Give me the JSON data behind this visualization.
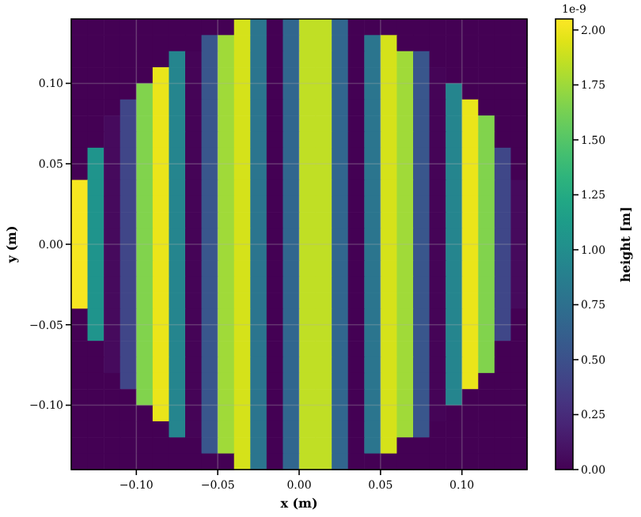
{
  "chart_data": {
    "type": "heatmap",
    "xlabel": "x (m)",
    "ylabel": "y (m)",
    "clabel": "height [m]",
    "annotations": [
      "1e-9"
    ],
    "xlim": [
      -0.14,
      0.14
    ],
    "ylim": [
      -0.14,
      0.14
    ],
    "xticks": [
      {
        "value": -0.1,
        "label": "−0.10"
      },
      {
        "value": -0.05,
        "label": "−0.05"
      },
      {
        "value": 0,
        "label": "0.00"
      },
      {
        "value": 0.05,
        "label": "0.05"
      },
      {
        "value": 0.1,
        "label": "0.10"
      }
    ],
    "yticks": [
      {
        "value": -0.1,
        "label": "−0.10"
      },
      {
        "value": -0.05,
        "label": "−0.05"
      },
      {
        "value": 0,
        "label": "0.00"
      },
      {
        "value": 0.05,
        "label": "0.05"
      },
      {
        "value": 0.1,
        "label": "0.10"
      }
    ],
    "grid": true,
    "clim": [
      0,
      2.05
    ],
    "cticks": [
      {
        "value": 0,
        "label": "0.00"
      },
      {
        "value": 0.25,
        "label": "0.25"
      },
      {
        "value": 0.5,
        "label": "0.50"
      },
      {
        "value": 0.75,
        "label": "0.75"
      },
      {
        "value": 1,
        "label": "1.00"
      },
      {
        "value": 1.25,
        "label": "1.25"
      },
      {
        "value": 1.5,
        "label": "1.50"
      },
      {
        "value": 1.75,
        "label": "1.75"
      },
      {
        "value": 2,
        "label": "2.00"
      }
    ],
    "cells": [
      [
        0,
        0,
        0,
        0,
        0,
        0,
        0,
        0,
        0,
        0,
        1.92,
        0.8,
        0.0,
        0.67,
        1.85,
        1.85,
        0.67,
        0.0,
        0,
        0,
        0,
        0,
        0,
        0,
        0,
        0,
        0,
        0
      ],
      [
        0,
        0,
        0,
        0,
        0,
        0,
        0,
        0,
        0.55,
        1.76,
        1.92,
        0.8,
        0.0,
        0.67,
        1.85,
        1.85,
        0.67,
        0.0,
        0.8,
        1.92,
        0,
        0,
        0,
        0,
        0,
        0,
        0,
        0
      ],
      [
        0,
        0,
        0,
        0,
        0,
        0,
        0.93,
        0.02,
        0.55,
        1.76,
        1.92,
        0.8,
        0.0,
        0.67,
        1.85,
        1.85,
        0.67,
        0.0,
        0.8,
        1.92,
        1.76,
        0.55,
        0,
        0,
        0,
        0,
        0,
        0
      ],
      [
        0,
        0,
        0,
        0,
        0,
        1.98,
        0.93,
        0.02,
        0.55,
        1.76,
        1.92,
        0.8,
        0.0,
        0.67,
        1.85,
        1.85,
        0.67,
        0.0,
        0.8,
        1.92,
        1.76,
        0.55,
        0.02,
        0,
        0,
        0,
        0,
        0
      ],
      [
        0,
        0,
        0,
        0,
        1.66,
        1.98,
        0.93,
        0.02,
        0.55,
        1.76,
        1.92,
        0.8,
        0.0,
        0.67,
        1.85,
        1.85,
        0.67,
        0.0,
        0.8,
        1.92,
        1.76,
        0.55,
        0.02,
        0.93,
        0,
        0,
        0,
        0
      ],
      [
        0,
        0,
        0,
        0.43,
        1.66,
        1.98,
        0.93,
        0.02,
        0.55,
        1.76,
        1.92,
        0.8,
        0.0,
        0.67,
        1.85,
        1.85,
        0.67,
        0.0,
        0.8,
        1.92,
        1.76,
        0.55,
        0.02,
        0.93,
        1.98,
        0,
        0,
        0
      ],
      [
        0,
        0,
        0.05,
        0.43,
        1.66,
        1.98,
        0.93,
        0.02,
        0.55,
        1.76,
        1.92,
        0.8,
        0.0,
        0.67,
        1.85,
        1.85,
        0.67,
        0.0,
        0.8,
        1.92,
        1.76,
        0.55,
        0.02,
        0.93,
        1.98,
        1.66,
        0,
        0
      ],
      [
        0,
        0,
        0.05,
        0.43,
        1.66,
        1.98,
        0.93,
        0.02,
        0.55,
        1.76,
        1.92,
        0.8,
        0.0,
        0.67,
        1.85,
        1.85,
        0.67,
        0.0,
        0.8,
        1.92,
        1.76,
        0.55,
        0.02,
        0.93,
        1.98,
        1.66,
        0,
        0
      ],
      [
        0,
        1.06,
        0.05,
        0.43,
        1.66,
        1.98,
        0.93,
        0.02,
        0.55,
        1.76,
        1.92,
        0.8,
        0.0,
        0.67,
        1.85,
        1.85,
        0.67,
        0.0,
        0.8,
        1.92,
        1.76,
        0.55,
        0.02,
        0.93,
        1.98,
        1.66,
        0.44,
        0
      ],
      [
        0,
        1.06,
        0.05,
        0.43,
        1.66,
        1.98,
        0.93,
        0.02,
        0.55,
        1.76,
        1.92,
        0.8,
        0.0,
        0.67,
        1.85,
        1.85,
        0.67,
        0.0,
        0.8,
        1.92,
        1.76,
        0.55,
        0.02,
        0.93,
        1.98,
        1.66,
        0.44,
        0
      ],
      [
        2.02,
        1.06,
        0.05,
        0.43,
        1.66,
        1.98,
        0.93,
        0.02,
        0.55,
        1.76,
        1.92,
        0.8,
        0.0,
        0.67,
        1.85,
        1.85,
        0.67,
        0.0,
        0.8,
        1.92,
        1.76,
        0.55,
        0.02,
        0.93,
        1.98,
        1.66,
        0.44,
        0.05
      ],
      [
        2.02,
        1.06,
        0.05,
        0.43,
        1.66,
        1.98,
        0.93,
        0.02,
        0.55,
        1.76,
        1.92,
        0.8,
        0.0,
        0.67,
        1.85,
        1.85,
        0.67,
        0.0,
        0.8,
        1.92,
        1.76,
        0.55,
        0.02,
        0.93,
        1.98,
        1.66,
        0.44,
        0.05
      ],
      [
        2.02,
        1.06,
        0.05,
        0.43,
        1.66,
        1.98,
        0.93,
        0.02,
        0.55,
        1.76,
        1.92,
        0.8,
        0.0,
        0.67,
        1.85,
        1.85,
        0.67,
        0.0,
        0.8,
        1.92,
        1.76,
        0.55,
        0.02,
        0.93,
        1.98,
        1.66,
        0.44,
        0.05
      ],
      [
        2.02,
        1.06,
        0.05,
        0.43,
        1.66,
        1.98,
        0.93,
        0.02,
        0.55,
        1.76,
        1.92,
        0.8,
        0.0,
        0.67,
        1.85,
        1.85,
        0.67,
        0.0,
        0.8,
        1.92,
        1.76,
        0.55,
        0.02,
        0.93,
        1.98,
        1.66,
        0.44,
        0.05
      ],
      [
        2.02,
        1.06,
        0.05,
        0.43,
        1.66,
        1.98,
        0.93,
        0.02,
        0.55,
        1.76,
        1.92,
        0.8,
        0.0,
        0.67,
        1.85,
        1.85,
        0.67,
        0.0,
        0.8,
        1.92,
        1.76,
        0.55,
        0.02,
        0.93,
        1.98,
        1.66,
        0.44,
        0.05
      ],
      [
        2.02,
        1.06,
        0.05,
        0.43,
        1.66,
        1.98,
        0.93,
        0.02,
        0.55,
        1.76,
        1.92,
        0.8,
        0.0,
        0.67,
        1.85,
        1.85,
        0.67,
        0.0,
        0.8,
        1.92,
        1.76,
        0.55,
        0.02,
        0.93,
        1.98,
        1.66,
        0.44,
        0.05
      ],
      [
        2.02,
        1.06,
        0.05,
        0.43,
        1.66,
        1.98,
        0.93,
        0.02,
        0.55,
        1.76,
        1.92,
        0.8,
        0.0,
        0.67,
        1.85,
        1.85,
        0.67,
        0.0,
        0.8,
        1.92,
        1.76,
        0.55,
        0.02,
        0.93,
        1.98,
        1.66,
        0.44,
        0.05
      ],
      [
        2.02,
        1.06,
        0.05,
        0.43,
        1.66,
        1.98,
        0.93,
        0.02,
        0.55,
        1.76,
        1.92,
        0.8,
        0.0,
        0.67,
        1.85,
        1.85,
        0.67,
        0.0,
        0.8,
        1.92,
        1.76,
        0.55,
        0.02,
        0.93,
        1.98,
        1.66,
        0.44,
        0.05
      ],
      [
        0,
        1.06,
        0.05,
        0.43,
        1.66,
        1.98,
        0.93,
        0.02,
        0.55,
        1.76,
        1.92,
        0.8,
        0.0,
        0.67,
        1.85,
        1.85,
        0.67,
        0.0,
        0.8,
        1.92,
        1.76,
        0.55,
        0.02,
        0.93,
        1.98,
        1.66,
        0.44,
        0
      ],
      [
        0,
        1.06,
        0.05,
        0.43,
        1.66,
        1.98,
        0.93,
        0.02,
        0.55,
        1.76,
        1.92,
        0.8,
        0.0,
        0.67,
        1.85,
        1.85,
        0.67,
        0.0,
        0.8,
        1.92,
        1.76,
        0.55,
        0.02,
        0.93,
        1.98,
        1.66,
        0.44,
        0
      ],
      [
        0,
        0,
        0.05,
        0.43,
        1.66,
        1.98,
        0.93,
        0.02,
        0.55,
        1.76,
        1.92,
        0.8,
        0.0,
        0.67,
        1.85,
        1.85,
        0.67,
        0.0,
        0.8,
        1.92,
        1.76,
        0.55,
        0.02,
        0.93,
        1.98,
        1.66,
        0,
        0
      ],
      [
        0,
        0,
        0.05,
        0.43,
        1.66,
        1.98,
        0.93,
        0.02,
        0.55,
        1.76,
        1.92,
        0.8,
        0.0,
        0.67,
        1.85,
        1.85,
        0.67,
        0.0,
        0.8,
        1.92,
        1.76,
        0.55,
        0.02,
        0.93,
        1.98,
        1.66,
        0,
        0
      ],
      [
        0,
        0,
        0,
        0.43,
        1.66,
        1.98,
        0.93,
        0.02,
        0.55,
        1.76,
        1.92,
        0.8,
        0.0,
        0.67,
        1.85,
        1.85,
        0.67,
        0.0,
        0.8,
        1.92,
        1.76,
        0.55,
        0.02,
        0.93,
        1.98,
        0,
        0,
        0
      ],
      [
        0,
        0,
        0,
        0,
        1.66,
        1.98,
        0.93,
        0.02,
        0.55,
        1.76,
        1.92,
        0.8,
        0.0,
        0.67,
        1.85,
        1.85,
        0.67,
        0.0,
        0.8,
        1.92,
        1.76,
        0.55,
        0.02,
        0.93,
        0,
        0,
        0,
        0
      ],
      [
        0,
        0,
        0,
        0,
        0,
        1.98,
        0.93,
        0.02,
        0.55,
        1.76,
        1.92,
        0.8,
        0.0,
        0.67,
        1.85,
        1.85,
        0.67,
        0.0,
        0.8,
        1.92,
        1.76,
        0.55,
        0.02,
        0,
        0,
        0,
        0,
        0
      ],
      [
        0,
        0,
        0,
        0,
        0,
        0,
        0.93,
        0.02,
        0.55,
        1.76,
        1.92,
        0.8,
        0.0,
        0.67,
        1.85,
        1.85,
        0.67,
        0.0,
        0.8,
        1.92,
        1.76,
        0.55,
        0,
        0,
        0,
        0,
        0,
        0
      ],
      [
        0,
        0,
        0,
        0,
        0,
        0,
        0,
        0,
        0.55,
        1.76,
        1.92,
        0.8,
        0.0,
        0.67,
        1.85,
        1.85,
        0.67,
        0.0,
        0.8,
        1.92,
        0,
        0,
        0,
        0,
        0,
        0,
        0,
        0
      ],
      [
        0,
        0,
        0,
        0,
        0,
        0,
        0,
        0,
        0,
        0,
        1.92,
        0.8,
        0.0,
        0.67,
        1.85,
        1.85,
        0.67,
        0.0,
        0,
        0,
        0,
        0,
        0,
        0,
        0,
        0,
        0,
        0
      ]
    ]
  }
}
